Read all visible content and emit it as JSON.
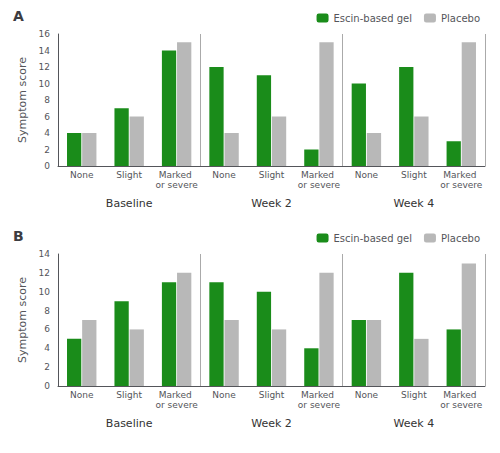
{
  "chart_data": [
    {
      "type": "bar",
      "title": "A",
      "ylabel": "Symptom score",
      "categories": [
        "None",
        "Slight",
        "Marked or severe",
        "None",
        "Slight",
        "Marked or severe",
        "None",
        "Slight",
        "Marked or severe"
      ],
      "annotations": [
        "Baseline",
        "Week 2",
        "Week 4"
      ],
      "series": [
        {
          "name": "Escin-based gel",
          "color": "#1a8c1a",
          "values": [
            4,
            7,
            14,
            12,
            11,
            2,
            10,
            12,
            3
          ]
        },
        {
          "name": "Placebo",
          "color": "#b8b8b8",
          "values": [
            4,
            6,
            15,
            4,
            6,
            15,
            4,
            6,
            15
          ]
        }
      ],
      "ylim": [
        0,
        16
      ],
      "yticks": [
        0,
        2,
        4,
        6,
        8,
        10,
        12,
        14,
        16
      ],
      "grid": false,
      "legend": "upper right"
    },
    {
      "type": "bar",
      "title": "B",
      "ylabel": "Symptom score",
      "categories": [
        "None",
        "Slight",
        "Marked or severe",
        "None",
        "Slight",
        "Marked or severe",
        "None",
        "Slight",
        "Marked or severe"
      ],
      "annotations": [
        "Baseline",
        "Week 2",
        "Week 4"
      ],
      "series": [
        {
          "name": "Escin-based gel",
          "color": "#1a8c1a",
          "values": [
            5,
            9,
            11,
            11,
            10,
            4,
            7,
            12,
            6
          ]
        },
        {
          "name": "Placebo",
          "color": "#b8b8b8",
          "values": [
            7,
            6,
            12,
            7,
            6,
            12,
            7,
            5,
            13
          ]
        }
      ],
      "ylim": [
        0,
        14
      ],
      "yticks": [
        0,
        2,
        4,
        6,
        8,
        10,
        12,
        14
      ],
      "grid": false,
      "legend": "upper right"
    }
  ]
}
